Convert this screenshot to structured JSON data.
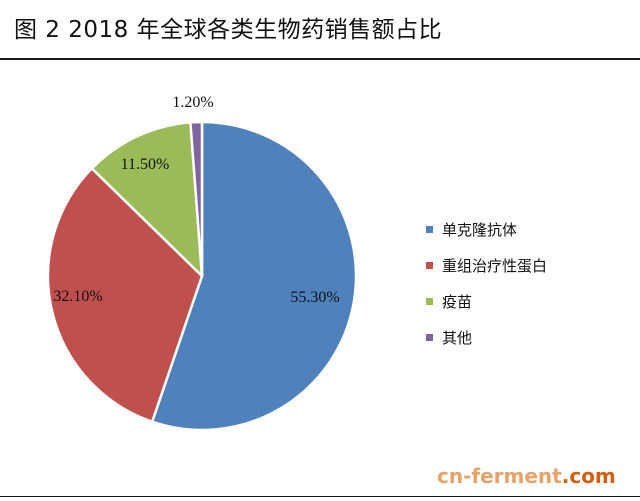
{
  "title": "图 2 2018 年全球各类生物药销售额占比",
  "chart_data": {
    "type": "pie",
    "categories": [
      "单克隆抗体",
      "重组治疗性蛋白",
      "疫苗",
      "其他"
    ],
    "values": [
      55.3,
      32.1,
      11.5,
      1.2
    ],
    "data_labels": [
      "55.30%",
      "32.10%",
      "11.50%",
      "1.20%"
    ],
    "colors": [
      "#4f81bd",
      "#c0504d",
      "#9bbb59",
      "#8064a2"
    ],
    "legend_position": "right",
    "start_angle": "top",
    "direction": "clockwise"
  },
  "watermark": {
    "part1": "cn-ferment",
    "part2": ".com"
  }
}
